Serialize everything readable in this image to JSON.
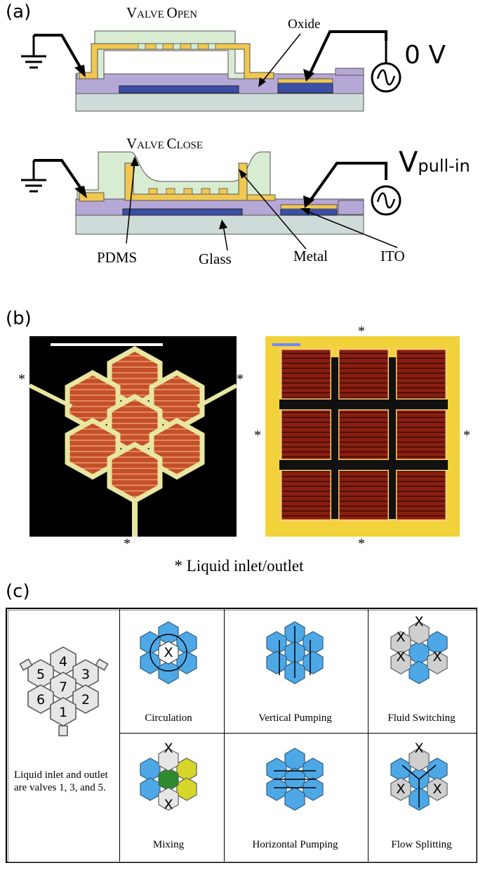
{
  "panel_a": {
    "label": "(a)",
    "open": {
      "title_big1": "V",
      "title_small1": "ALVE ",
      "title_big2": "O",
      "title_small2": "PEN",
      "oxide": "Oxide",
      "voltage": "0 V"
    },
    "close": {
      "title_big1": "V",
      "title_small1": "ALVE ",
      "title_big2": "C",
      "title_small2": "LOSE",
      "voltage_main": "V",
      "voltage_sub": "pull-in"
    },
    "materials": {
      "pdms": "PDMS",
      "glass": "Glass",
      "metal": "Metal",
      "ito": "ITO"
    },
    "colors": {
      "pdms": "#d8ecd2",
      "metal": "#f0c750",
      "oxide": "#b6a8d6",
      "ito_electrode": "#3b4fa8",
      "glass": "#cfdbd8"
    }
  },
  "panel_b": {
    "label": "(b)",
    "marker": "*",
    "legend": "* Liquid inlet/outlet"
  },
  "panel_c": {
    "label": "(c)",
    "key_numbers": [
      "4",
      "5",
      "3",
      "7",
      "6",
      "2",
      "1"
    ],
    "key_note": "Liquid inlet and outlet are valves 1, 3, and 5.",
    "modes": [
      {
        "name": "Circulation"
      },
      {
        "name": "Vertical Pumping"
      },
      {
        "name": "Fluid Switching"
      },
      {
        "name": "Mixing"
      },
      {
        "name": "Horizontal Pumping"
      },
      {
        "name": "Flow Splitting"
      }
    ],
    "closed_mark": "X"
  }
}
